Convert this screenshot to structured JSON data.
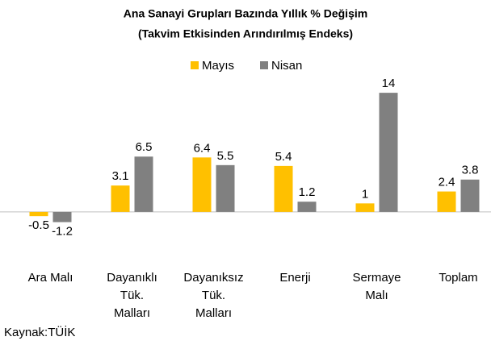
{
  "chart_data": {
    "type": "bar",
    "title": "Ana Sanayi Grupları Bazında Yıllık % Değişim",
    "subtitle": "(Takvim Etkisinden Arındırılmış Endeks)",
    "categories": [
      "Ara Malı",
      "Dayanıklı\nTük.\nMalları",
      "Dayanıksız\nTük.\nMalları",
      "Enerji",
      "Sermaye\nMalı",
      "Toplam"
    ],
    "series": [
      {
        "name": "Mayıs",
        "color": "#ffc000",
        "values": [
          -0.5,
          3.1,
          6.4,
          5.4,
          1,
          2.4
        ]
      },
      {
        "name": "Nisan",
        "color": "#808080",
        "values": [
          -1.2,
          6.5,
          5.5,
          1.2,
          14,
          3.8
        ]
      }
    ],
    "ylim": [
      -2,
      16
    ],
    "legend": "top",
    "source": "Kaynak:TÜİK"
  }
}
